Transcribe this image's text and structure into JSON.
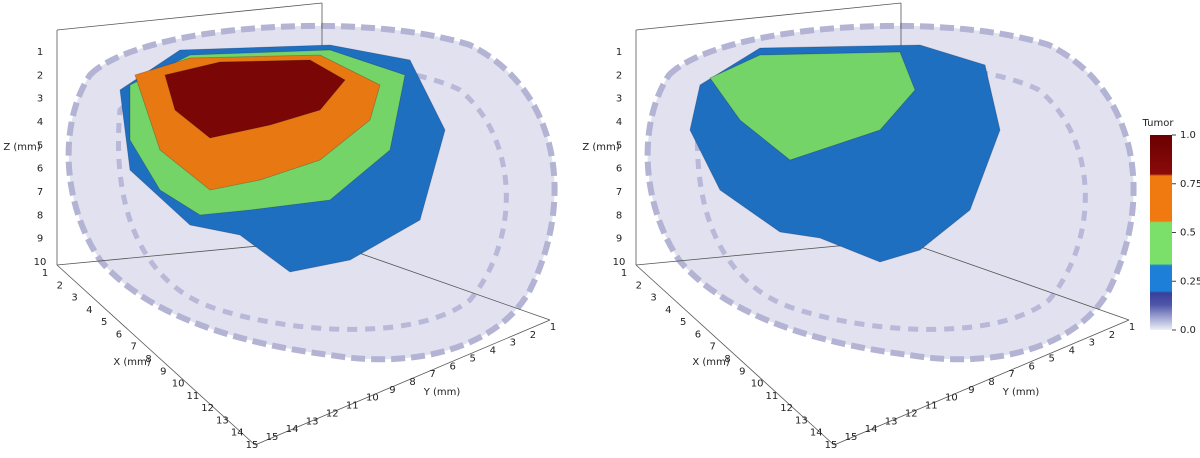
{
  "panels": [
    {
      "z_axis": {
        "label": "Z (mm)",
        "ticks": [
          "1",
          "2",
          "3",
          "4",
          "5",
          "6",
          "7",
          "8",
          "9",
          "10"
        ]
      },
      "x_axis": {
        "label": "X (mm)",
        "ticks": [
          "1",
          "2",
          "3",
          "4",
          "5",
          "6",
          "7",
          "8",
          "9",
          "10",
          "11",
          "12",
          "13",
          "14",
          "15"
        ]
      },
      "y_axis": {
        "label": "Y (mm)",
        "ticks": [
          "1",
          "2",
          "3",
          "4",
          "5",
          "6",
          "7",
          "8",
          "9",
          "10",
          "11",
          "12",
          "13",
          "14",
          "15"
        ]
      }
    },
    {
      "z_axis": {
        "label": "Z (mm)",
        "ticks": [
          "1",
          "2",
          "3",
          "4",
          "5",
          "6",
          "7",
          "8",
          "9",
          "10"
        ]
      },
      "x_axis": {
        "label": "X (mm)",
        "ticks": [
          "1",
          "2",
          "3",
          "4",
          "5",
          "6",
          "7",
          "8",
          "9",
          "10",
          "11",
          "12",
          "13",
          "14",
          "15"
        ]
      },
      "y_axis": {
        "label": "Y (mm)",
        "ticks": [
          "1",
          "2",
          "3",
          "4",
          "5",
          "6",
          "7",
          "8",
          "9",
          "10",
          "11",
          "12",
          "13",
          "14",
          "15"
        ]
      }
    }
  ],
  "colorbar": {
    "title": "Tumor",
    "ticks": [
      "1.0",
      "0.75",
      "0.5",
      "0.25",
      "0.0"
    ]
  }
}
